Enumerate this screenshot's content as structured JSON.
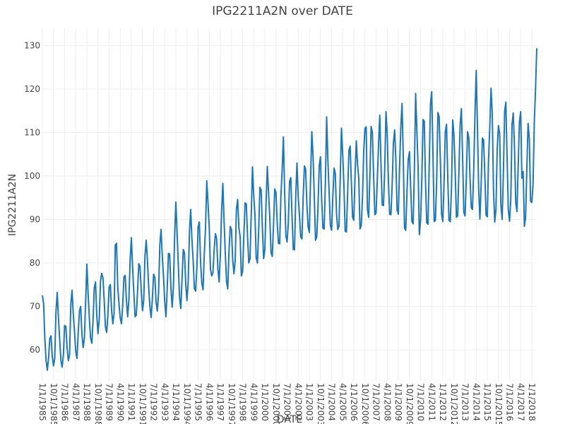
{
  "chart_data": {
    "type": "line",
    "title": "IPG2211A2N over DATE",
    "xlabel": "DATE",
    "ylabel": "IPG2211A2N",
    "ylim": [
      53,
      134
    ],
    "yticks": [
      60,
      70,
      80,
      90,
      100,
      110,
      120,
      130
    ],
    "grid": true,
    "line_color": "#1f77b4",
    "xtick_labels": [
      "1/1/1985",
      "10/1/1985",
      "7/1/1986",
      "4/1/1987",
      "1/1/1988",
      "10/1/1988",
      "7/1/1989",
      "4/1/1990",
      "1/1/1991",
      "10/1/1991",
      "7/1/1992",
      "4/1/1993",
      "1/1/1994",
      "10/1/1994",
      "7/1/1995",
      "4/1/1996",
      "1/1/1997",
      "10/1/1997",
      "7/1/1998",
      "4/1/1999",
      "1/1/2000",
      "10/1/2000",
      "7/1/2001",
      "4/1/2002",
      "1/1/2003",
      "10/1/2003",
      "7/1/2004",
      "4/1/2005",
      "1/1/2006",
      "10/1/2006",
      "7/1/2007",
      "4/1/2008",
      "1/1/2009",
      "10/1/2009",
      "7/1/2010",
      "4/1/2011",
      "1/1/2012",
      "10/1/2012",
      "7/1/2013",
      "4/1/2014",
      "1/1/2015",
      "10/1/2015",
      "7/1/2016",
      "4/1/2017",
      "1/1/2018"
    ],
    "series": [
      {
        "x_start": "1985-01",
        "frequency": "monthly",
        "values": [
          72.5,
          70.7,
          62.5,
          57.5,
          55.3,
          58.1,
          62.6,
          63.2,
          58.5,
          56.3,
          58.0,
          68.8,
          73.2,
          67.3,
          62.3,
          57.5,
          56.0,
          58.9,
          65.6,
          65.4,
          60.5,
          57.5,
          58.8,
          70.3,
          73.7,
          68.2,
          64.2,
          59.6,
          58.0,
          63.9,
          68.9,
          70.0,
          63.5,
          60.5,
          62.7,
          71.0,
          79.7,
          73.0,
          67.2,
          62.7,
          61.5,
          66.7,
          74.3,
          75.6,
          67.9,
          63.7,
          67.0,
          75.7,
          77.6,
          76.6,
          71.5,
          65.3,
          64.0,
          68.0,
          74.4,
          75.0,
          69.1,
          66.0,
          68.3,
          84.1,
          84.5,
          74.5,
          70.5,
          67.3,
          66.0,
          70.3,
          76.8,
          77.1,
          71.4,
          67.6,
          71.5,
          80.7,
          85.8,
          79.0,
          73.1,
          67.6,
          68.0,
          73.4,
          79.8,
          79.2,
          73.6,
          69.0,
          71.4,
          81.6,
          85.2,
          80.5,
          74.5,
          69.9,
          67.4,
          71.8,
          77.4,
          76.7,
          71.0,
          68.9,
          73.0,
          84.0,
          87.7,
          81.7,
          76.9,
          71.0,
          67.6,
          74.1,
          82.2,
          82.0,
          74.2,
          69.8,
          74.4,
          86.2,
          94.0,
          86.9,
          79.4,
          72.0,
          69.5,
          76.3,
          83.1,
          82.3,
          75.0,
          71.3,
          75.8,
          87.1,
          92.3,
          85.4,
          80.5,
          74.1,
          73.5,
          78.9,
          88.3,
          89.4,
          80.1,
          75.3,
          73.8,
          82.0,
          88.0,
          98.9,
          93.8,
          88.3,
          78.6,
          77.0,
          77.7,
          83.1,
          86.7,
          85.6,
          78.6,
          75.6,
          81.7,
          91.7,
          98.3,
          89.8,
          82.1,
          75.7,
          74.0,
          82.8,
          88.4,
          87.7,
          80.8,
          77.5,
          80.5,
          92.4,
          94.6,
          88.2,
          86.0,
          77.0,
          78.0,
          86.1,
          93.8,
          93.6,
          86.1,
          80.0,
          81.0,
          91.3,
          102.1,
          95.5,
          91.1,
          81.1,
          80.0,
          87.6,
          97.4,
          96.8,
          88.1,
          81.0,
          83.0,
          94.0,
          102.2,
          96.1,
          90.5,
          82.4,
          81.5,
          88.6,
          97.0,
          96.2,
          89.3,
          84.5,
          84.4,
          95.5,
          101.3,
          109.0,
          96.6,
          86.3,
          84.8,
          89.2,
          98.8,
          99.6,
          90.8,
          83.1,
          83.0,
          95.4,
          103.0,
          95.2,
          91.1,
          86.0,
          85.5,
          95.0,
          102.3,
          101.6,
          93.5,
          88.3,
          87.0,
          99.3,
          110.2,
          104.6,
          95.3,
          85.2,
          86.0,
          92.9,
          102.4,
          104.4,
          94.4,
          88.0,
          87.8,
          98.8,
          113.6,
          103.7,
          96.3,
          88.7,
          87.5,
          95.1,
          101.8,
          100.6,
          91.3,
          87.7,
          88.5,
          99.7,
          111.0,
          104.9,
          97.8,
          87.3,
          87.1,
          96.1,
          105.8,
          106.9,
          98.7,
          90.5,
          89.8,
          100.4,
          108.1,
          102.6,
          99.4,
          87.8,
          88.6,
          95.0,
          105.8,
          111.0,
          111.3,
          92.3,
          90.5,
          100.0,
          111.4,
          110.0,
          100.2,
          91.1,
          91.5,
          99.1,
          107.4,
          114.0,
          102.5,
          93.3,
          93.2,
          101.6,
          114.8,
          109.7,
          98.6,
          91.2,
          91.1,
          97.8,
          107.5,
          110.6,
          103.8,
          92.2,
          91.2,
          101.9,
          111.2,
          116.7,
          104.3,
          88.0,
          87.5,
          96.3,
          103.8,
          105.6,
          97.3,
          89.5,
          89.0,
          101.5,
          119.0,
          110.6,
          101.9,
          86.5,
          89.8,
          99.1,
          113.0,
          112.6,
          98.6,
          89.2,
          88.9,
          102.5,
          116.5,
          119.4,
          105.5,
          89.5,
          89.8,
          98.6,
          114.6,
          113.7,
          103.8,
          91.2,
          89.5,
          98.4,
          110.2,
          111.9,
          99.6,
          89.8,
          89.5,
          97.0,
          112.9,
          109.4,
          101.2,
          90.5,
          90.8,
          100.8,
          111.7,
          115.5,
          104.4,
          91.6,
          90.8,
          99.3,
          110.2,
          108.9,
          99.6,
          92.7,
          92.3,
          101.3,
          114.3,
          124.3,
          111.5,
          97.2,
          90.1,
          97.8,
          108.7,
          108.3,
          100.2,
          91.0,
          90.6,
          103.7,
          111.3,
          120.2,
          114.3,
          96.8,
          89.4,
          92.3,
          106.3,
          111.6,
          109.7,
          93.3,
          90.0,
          100.5,
          114.8,
          117.0,
          104.3,
          92.2,
          89.6,
          94.5,
          111.9,
          114.5,
          106.5,
          93.9,
          91.8,
          102.6,
          112.5,
          114.8,
          99.5,
          101.0,
          88.4,
          90.5,
          102.1,
          112.1,
          108.5,
          94.2,
          93.9,
          98.0,
          112.3,
          119.9,
          129.4
        ]
      }
    ]
  }
}
